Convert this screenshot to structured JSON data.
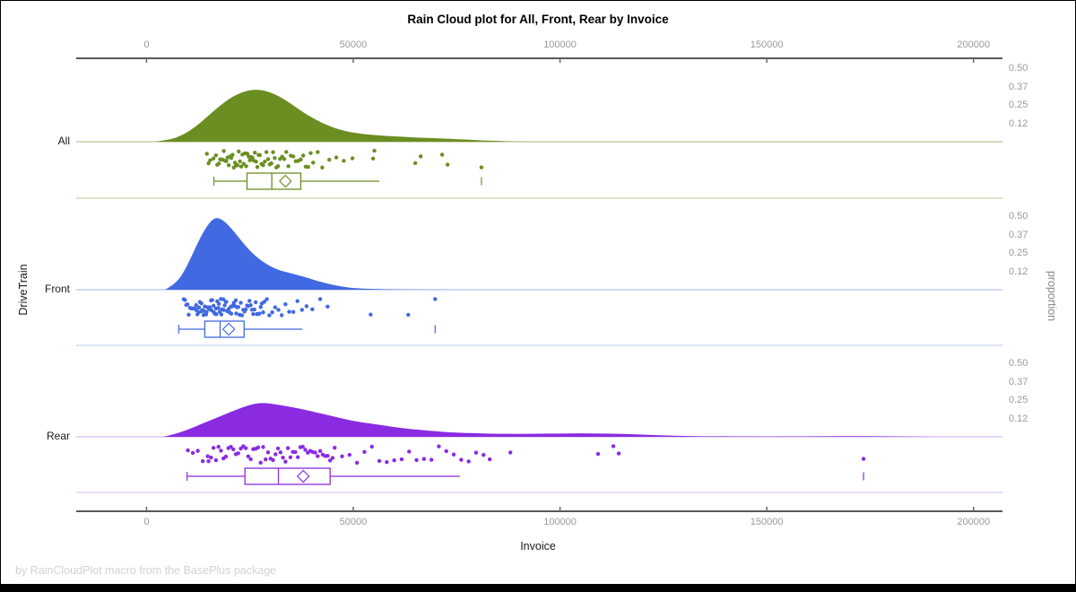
{
  "meta": {
    "footer": "by RainCloudPlot macro from the BasePlus package"
  },
  "chart_data": {
    "type": "raincloud",
    "title": "Rain Cloud plot for All, Front, Rear by Invoice",
    "xlabel": "Invoice",
    "ylabel": "DriveTrain",
    "y2label": "proportion",
    "xlim": [
      -17000,
      207000
    ],
    "x_ticks": [
      0,
      50000,
      100000,
      150000,
      200000
    ],
    "proportion_ticks": [
      0.12,
      0.25,
      0.37,
      0.5
    ],
    "grid": "off",
    "legend_position": "none",
    "groups": [
      {
        "name": "All",
        "color": "#6b8e23",
        "light_color": "#b9c795",
        "box": {
          "whisker_low": 16300,
          "q1": 24300,
          "median": 30300,
          "q3": 37300,
          "mean": 33600,
          "whisker_high": 56300,
          "outliers": [
            81000
          ]
        },
        "density": [
          [
            2000,
            0
          ],
          [
            6000,
            0.015
          ],
          [
            9000,
            0.05
          ],
          [
            12000,
            0.105
          ],
          [
            15000,
            0.18
          ],
          [
            18000,
            0.255
          ],
          [
            21000,
            0.315
          ],
          [
            24000,
            0.35
          ],
          [
            26500,
            0.36
          ],
          [
            29000,
            0.35
          ],
          [
            32000,
            0.315
          ],
          [
            35000,
            0.26
          ],
          [
            38000,
            0.2
          ],
          [
            41000,
            0.15
          ],
          [
            44000,
            0.11
          ],
          [
            47000,
            0.08
          ],
          [
            50000,
            0.062
          ],
          [
            54000,
            0.048
          ],
          [
            58000,
            0.04
          ],
          [
            62000,
            0.034
          ],
          [
            66000,
            0.028
          ],
          [
            70000,
            0.024
          ],
          [
            74000,
            0.019
          ],
          [
            78000,
            0.014
          ],
          [
            82000,
            0.008
          ],
          [
            86000,
            0.004
          ],
          [
            89000,
            0.001
          ],
          [
            92000,
            0
          ]
        ],
        "points": [
          14600,
          15000,
          15400,
          16200,
          16800,
          17100,
          17500,
          17800,
          18100,
          18400,
          18700,
          19000,
          19300,
          19600,
          19900,
          20200,
          20500,
          20800,
          21100,
          21400,
          21700,
          22000,
          22300,
          22600,
          22900,
          23200,
          23500,
          23800,
          24100,
          24400,
          24700,
          25000,
          25300,
          25600,
          25900,
          26200,
          26500,
          26800,
          27100,
          27400,
          27800,
          28200,
          28600,
          29000,
          29400,
          29800,
          30200,
          30600,
          31000,
          31400,
          31800,
          32300,
          32800,
          33300,
          33800,
          34300,
          34900,
          35500,
          36100,
          36700,
          37300,
          37900,
          38500,
          39100,
          39700,
          40300,
          41400,
          42500,
          44200,
          45900,
          47700,
          49800,
          54800,
          55100,
          65000,
          66300,
          71500,
          72800,
          81000
        ]
      },
      {
        "name": "Front",
        "color": "#4169e1",
        "light_color": "#b7c5ee",
        "box": {
          "whisker_low": 7800,
          "q1": 14100,
          "median": 17800,
          "q3": 23600,
          "mean": 19900,
          "whisker_high": 37700,
          "outliers": [
            69800
          ]
        },
        "density": [
          [
            4500,
            0
          ],
          [
            7000,
            0.04
          ],
          [
            9000,
            0.12
          ],
          [
            11000,
            0.235
          ],
          [
            13000,
            0.36
          ],
          [
            15000,
            0.455
          ],
          [
            16500,
            0.495
          ],
          [
            18000,
            0.49
          ],
          [
            20000,
            0.44
          ],
          [
            22000,
            0.37
          ],
          [
            24000,
            0.3
          ],
          [
            26000,
            0.24
          ],
          [
            28000,
            0.195
          ],
          [
            30000,
            0.16
          ],
          [
            32000,
            0.135
          ],
          [
            34000,
            0.12
          ],
          [
            36000,
            0.105
          ],
          [
            38000,
            0.09
          ],
          [
            40000,
            0.072
          ],
          [
            42000,
            0.055
          ],
          [
            44000,
            0.04
          ],
          [
            46000,
            0.028
          ],
          [
            48000,
            0.018
          ],
          [
            50000,
            0.012
          ],
          [
            53000,
            0.007
          ],
          [
            57000,
            0.004
          ],
          [
            62000,
            0.002
          ],
          [
            68000,
            0.001
          ],
          [
            75000,
            0
          ]
        ],
        "points": [
          9000,
          9300,
          9600,
          9900,
          10200,
          10500,
          10800,
          11100,
          11400,
          11700,
          12000,
          12300,
          12600,
          12900,
          13200,
          13500,
          13800,
          14100,
          14400,
          14700,
          15000,
          15300,
          15600,
          15900,
          16200,
          16500,
          16800,
          17100,
          17400,
          17700,
          18000,
          18300,
          18600,
          18900,
          19200,
          19500,
          19800,
          20100,
          20400,
          20700,
          21000,
          21300,
          21600,
          21900,
          22200,
          22500,
          22800,
          23100,
          23400,
          23700,
          24000,
          24300,
          24600,
          24900,
          25200,
          25500,
          25800,
          26100,
          26400,
          26700,
          27000,
          27300,
          27600,
          27900,
          28200,
          12100,
          12700,
          13300,
          13900,
          14500,
          15100,
          15700,
          16300,
          16900,
          17500,
          18100,
          18700,
          19300,
          19900,
          20500,
          21100,
          21700,
          28500,
          29100,
          29700,
          30400,
          31100,
          31900,
          32700,
          33600,
          34500,
          35500,
          36500,
          37600,
          38700,
          40100,
          42000,
          43800,
          54200,
          63300,
          69800
        ]
      },
      {
        "name": "Rear",
        "color": "#8a2be2",
        "light_color": "#d6baf1",
        "box": {
          "whisker_low": 9800,
          "q1": 23800,
          "median": 31900,
          "q3": 44400,
          "mean": 37900,
          "whisker_high": 75800,
          "outliers": [
            173400
          ]
        },
        "density": [
          [
            4000,
            0
          ],
          [
            7000,
            0.02
          ],
          [
            10000,
            0.05
          ],
          [
            13000,
            0.085
          ],
          [
            16000,
            0.12
          ],
          [
            19000,
            0.155
          ],
          [
            22000,
            0.19
          ],
          [
            25000,
            0.22
          ],
          [
            27000,
            0.232
          ],
          [
            29000,
            0.232
          ],
          [
            31000,
            0.225
          ],
          [
            34000,
            0.21
          ],
          [
            37000,
            0.195
          ],
          [
            40000,
            0.175
          ],
          [
            43000,
            0.155
          ],
          [
            46000,
            0.135
          ],
          [
            49000,
            0.115
          ],
          [
            52000,
            0.1
          ],
          [
            55000,
            0.088
          ],
          [
            58000,
            0.075
          ],
          [
            61000,
            0.063
          ],
          [
            64000,
            0.053
          ],
          [
            67000,
            0.045
          ],
          [
            70000,
            0.038
          ],
          [
            73000,
            0.032
          ],
          [
            76000,
            0.028
          ],
          [
            80000,
            0.024
          ],
          [
            85000,
            0.021
          ],
          [
            90000,
            0.02
          ],
          [
            95000,
            0.021
          ],
          [
            100000,
            0.023
          ],
          [
            105000,
            0.024
          ],
          [
            110000,
            0.023
          ],
          [
            115000,
            0.02
          ],
          [
            120000,
            0.015
          ],
          [
            125000,
            0.01
          ],
          [
            130000,
            0.006
          ],
          [
            136000,
            0.004
          ],
          [
            143000,
            0.003
          ],
          [
            150000,
            0.0025
          ],
          [
            158000,
            0.003
          ],
          [
            165000,
            0.0045
          ],
          [
            170000,
            0.005
          ],
          [
            175000,
            0.0045
          ],
          [
            180000,
            0.003
          ],
          [
            186000,
            0.0015
          ],
          [
            192000,
            0
          ]
        ],
        "points": [
          10000,
          11200,
          12400,
          13600,
          14800,
          15000,
          15600,
          16200,
          16800,
          17400,
          18000,
          18600,
          19200,
          19800,
          20400,
          21000,
          21600,
          22200,
          22800,
          23400,
          24000,
          24600,
          25200,
          25800,
          26400,
          27000,
          27600,
          28200,
          28800,
          29400,
          30000,
          30600,
          31200,
          31800,
          32400,
          33000,
          33600,
          34200,
          34800,
          35400,
          36000,
          36600,
          37200,
          37800,
          38400,
          39000,
          39600,
          40200,
          40800,
          41400,
          42000,
          42600,
          43200,
          43800,
          44400,
          45000,
          45500,
          47300,
          49100,
          50900,
          52700,
          54500,
          56300,
          58100,
          59900,
          61700,
          63500,
          65300,
          67100,
          68900,
          70700,
          72500,
          74300,
          76100,
          77900,
          79700,
          81500,
          83000,
          88000,
          109200,
          112900,
          114200,
          173400
        ]
      }
    ]
  }
}
